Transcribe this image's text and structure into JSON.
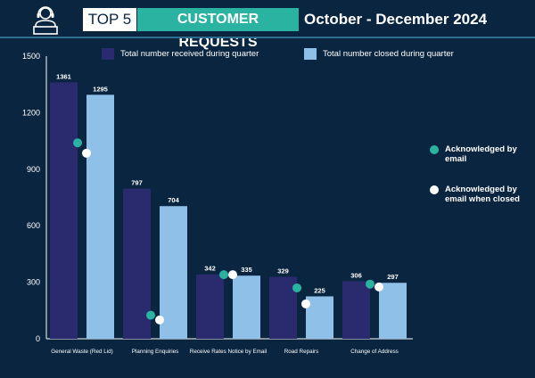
{
  "header": {
    "badge": "TOP 5",
    "title": "CUSTOMER REQUESTS",
    "period": "October - December 2024"
  },
  "legend_top": [
    {
      "label": "Total number received during quarter",
      "color": "#2a2a6e"
    },
    {
      "label": "Total number closed during quarter",
      "color": "#8fc0e8"
    }
  ],
  "legend_right": [
    {
      "label": "Acknowledged by email",
      "color": "#2ab3a0"
    },
    {
      "label": "Acknowledged by email when closed",
      "color": "#ffffff"
    }
  ],
  "chart_data": {
    "type": "bar",
    "title": "CUSTOMER REQUESTS October - December 2024",
    "categories": [
      "General Waste (Red Lid)",
      "Planning Enquiries",
      "Receive Rates Notice by Email",
      "Road Repairs",
      "Change of Address"
    ],
    "series": [
      {
        "name": "Total number received during quarter",
        "values": [
          1361,
          797,
          342,
          329,
          306
        ],
        "color": "#2a2a6e"
      },
      {
        "name": "Total number closed during quarter",
        "values": [
          1295,
          704,
          335,
          225,
          297
        ],
        "color": "#8fc0e8"
      }
    ],
    "markers": [
      {
        "name": "Acknowledged by email",
        "values": [
          1040,
          125,
          340,
          270,
          290
        ],
        "color": "#2ab3a0"
      },
      {
        "name": "Acknowledged by email when closed",
        "values": [
          985,
          100,
          340,
          185,
          275
        ],
        "color": "#ffffff"
      }
    ],
    "yticks": [
      0,
      300,
      600,
      900,
      1200,
      1500
    ],
    "ylim": [
      0,
      1500
    ],
    "xlabel": "",
    "ylabel": ""
  }
}
